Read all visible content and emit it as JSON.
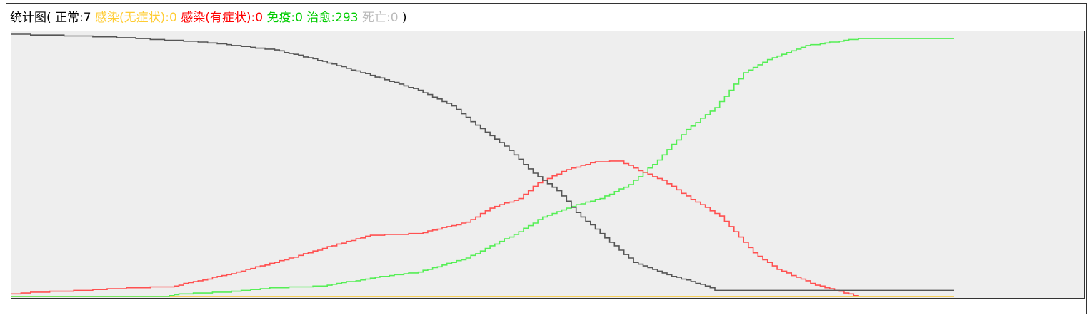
{
  "stats_bar": {
    "title": "统计图",
    "open_paren": "( ",
    "close_paren": " )",
    "items": [
      {
        "label": "正常",
        "value": "7",
        "color": "#000000"
      },
      {
        "label": "感染(无症状)",
        "value": "0",
        "color": "#ffcc33"
      },
      {
        "label": "感染(有症状)",
        "value": "0",
        "color": "#ff0000"
      },
      {
        "label": "免疫",
        "value": "0",
        "color": "#00cc00"
      },
      {
        "label": "治愈",
        "value": "293",
        "color": "#00cc00"
      },
      {
        "label": "死亡",
        "value": "0",
        "color": "#bbbbbb"
      }
    ]
  },
  "chart_data": {
    "type": "line",
    "title": "",
    "xlabel": "",
    "ylabel": "",
    "x_count": 198,
    "ylim": [
      0,
      300
    ],
    "grid": false,
    "legend": "none",
    "series": [
      {
        "key": "normal",
        "color": "#555555",
        "anchors": [
          [
            0,
            300
          ],
          [
            20,
            297
          ],
          [
            40,
            291
          ],
          [
            55,
            282
          ],
          [
            65,
            269
          ],
          [
            75,
            253
          ],
          [
            85,
            236
          ],
          [
            92,
            218
          ],
          [
            97,
            196
          ],
          [
            103,
            172
          ],
          [
            109,
            141
          ],
          [
            114,
            121
          ],
          [
            118,
            96
          ],
          [
            124,
            67
          ],
          [
            130,
            39
          ],
          [
            137,
            25
          ],
          [
            145,
            12
          ],
          [
            147,
            7
          ],
          [
            197,
            7
          ]
        ]
      },
      {
        "key": "infected_symptomatic",
        "color": "#ff5050",
        "anchors": [
          [
            0,
            3
          ],
          [
            5,
            5
          ],
          [
            15,
            7
          ],
          [
            25,
            10
          ],
          [
            33,
            11
          ],
          [
            45,
            25
          ],
          [
            57,
            42
          ],
          [
            65,
            55
          ],
          [
            75,
            70
          ],
          [
            85,
            72
          ],
          [
            95,
            85
          ],
          [
            100,
            101
          ],
          [
            106,
            112
          ],
          [
            110,
            130
          ],
          [
            116,
            145
          ],
          [
            122,
            154
          ],
          [
            127,
            155
          ],
          [
            131,
            144
          ],
          [
            136,
            133
          ],
          [
            142,
            111
          ],
          [
            148,
            92
          ],
          [
            155,
            50
          ],
          [
            160,
            31
          ],
          [
            168,
            13
          ],
          [
            177,
            0
          ]
        ]
      },
      {
        "key": "infected_asymptomatic",
        "color": "#ffcc33",
        "anchors": [
          [
            0,
            0
          ],
          [
            197,
            0
          ]
        ]
      },
      {
        "key": "cured",
        "color": "#55ee55",
        "anchors": [
          [
            0,
            0
          ],
          [
            32,
            0
          ],
          [
            35,
            3
          ],
          [
            44,
            5
          ],
          [
            55,
            10
          ],
          [
            65,
            12
          ],
          [
            76,
            22
          ],
          [
            85,
            28
          ],
          [
            95,
            44
          ],
          [
            105,
            71
          ],
          [
            111,
            91
          ],
          [
            117,
            103
          ],
          [
            123,
            112
          ],
          [
            129,
            128
          ],
          [
            135,
            156
          ],
          [
            141,
            191
          ],
          [
            147,
            216
          ],
          [
            153,
            256
          ],
          [
            158,
            271
          ],
          [
            166,
            287
          ],
          [
            177,
            295
          ],
          [
            197,
            295
          ]
        ]
      },
      {
        "key": "dead",
        "color": "#bbbbbb",
        "anchors": [
          [
            0,
            0
          ],
          [
            197,
            0
          ]
        ]
      }
    ]
  }
}
